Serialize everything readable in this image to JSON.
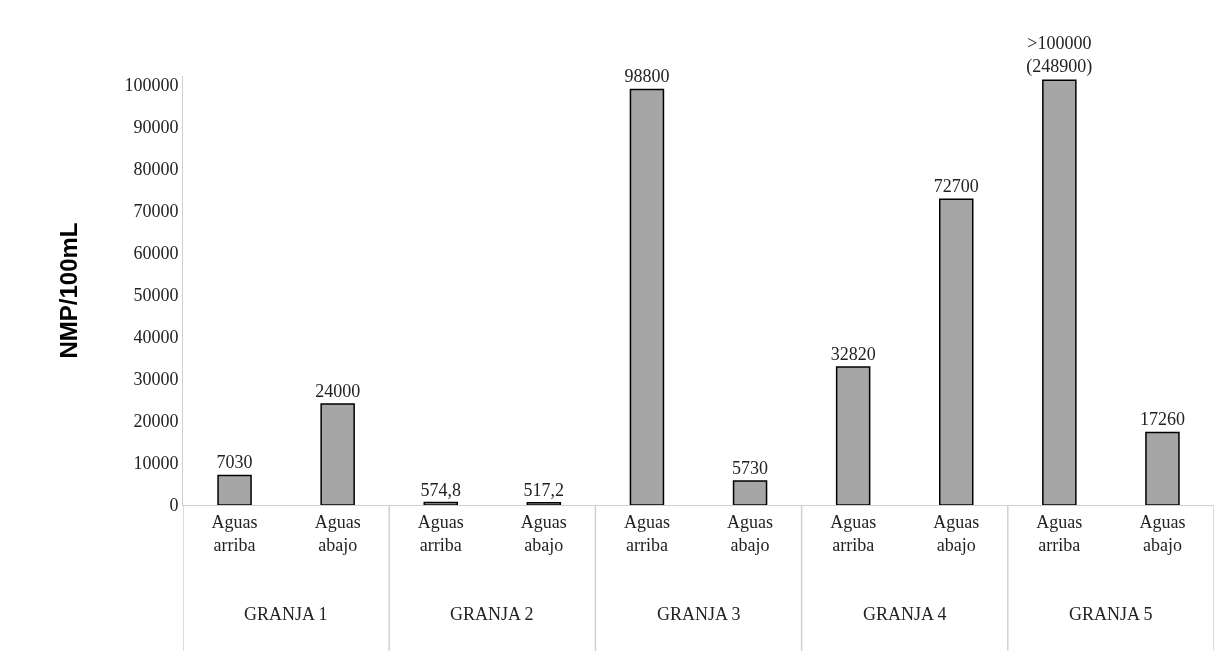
{
  "chart_data": {
    "type": "bar",
    "ylabel": "NMP/100mL",
    "categories": [
      "Aguas\narriba",
      "Aguas\nabajo",
      "Aguas\narriba",
      "Aguas\nabajo",
      "Aguas\narriba",
      "Aguas\nabajo",
      "Aguas\narriba",
      "Aguas\nabajo",
      "Aguas\narriba",
      "Aguas\nabajo"
    ],
    "values": [
      7030,
      24000,
      574.8,
      517.2,
      98800,
      5730,
      32820,
      72700,
      101000,
      17260
    ],
    "value_labels": [
      "7030",
      "24000",
      "574,8",
      "517,2",
      "98800",
      "5730",
      "32820",
      "72700",
      ">100000\n(248900)",
      "17260"
    ],
    "color": "#a6a6a6",
    "annotations": [
      "GRANJA 1",
      "GRANJA 2",
      "GRANJA 3",
      "GRANJA 4",
      "GRANJA 5"
    ],
    "ylim": [
      0,
      102000
    ],
    "yticks": [
      0,
      10000,
      20000,
      30000,
      40000,
      50000,
      60000,
      70000,
      80000,
      90000,
      100000
    ],
    "legend": false
  }
}
